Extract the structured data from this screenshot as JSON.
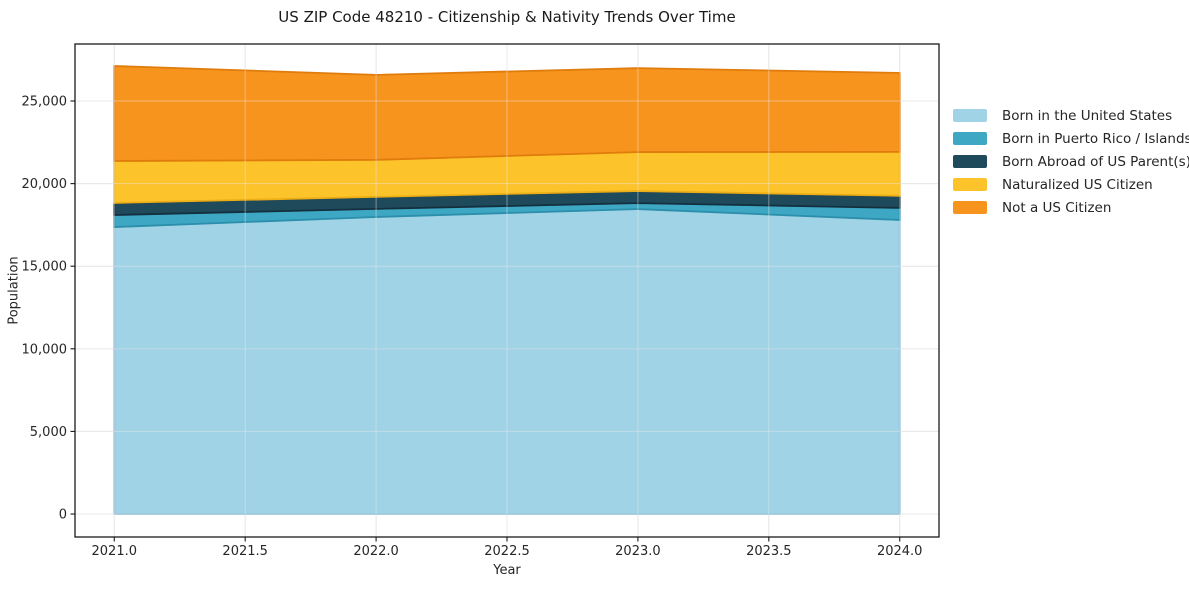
{
  "figure": {
    "title": "US ZIP Code 48210 - Citizenship & Nativity Trends Over Time",
    "xlabel": "Year",
    "ylabel": "Population"
  },
  "colors": {
    "background": "#ffffff",
    "spine": "#1a1a1a",
    "grid": "#e8e8e8",
    "tick_text": "#262626",
    "series": [
      "#a1d3e6",
      "#3ea8c4",
      "#1f4a5c",
      "#fcc32b",
      "#f7941e"
    ],
    "series_edges": [
      "#85bdd7",
      "#2b8fab",
      "#14303e",
      "#edae15",
      "#e07c0c"
    ]
  },
  "legend": {
    "position": "right",
    "items": [
      {
        "label": "Born in the United States",
        "color": "#a1d3e6"
      },
      {
        "label": "Born in Puerto Rico / Islands",
        "color": "#3ea8c4"
      },
      {
        "label": "Born Abroad of US Parent(s)",
        "color": "#1f4a5c"
      },
      {
        "label": "Naturalized US Citizen",
        "color": "#fcc32b"
      },
      {
        "label": "Not a US Citizen",
        "color": "#f7941e"
      }
    ]
  },
  "chart_data": {
    "type": "area",
    "stacked": true,
    "title": "US ZIP Code 48210 - Citizenship & Nativity Trends Over Time",
    "xlabel": "Year",
    "ylabel": "Population",
    "x": [
      2021,
      2022,
      2023,
      2024
    ],
    "series": [
      {
        "name": "Born in the United States",
        "values": [
          17370,
          17980,
          18460,
          17800
        ]
      },
      {
        "name": "Born in Puerto Rico / Islands",
        "values": [
          730,
          490,
          360,
          730
        ]
      },
      {
        "name": "Born Abroad of US Parent(s)",
        "values": [
          730,
          730,
          730,
          730
        ]
      },
      {
        "name": "Naturalized US Citizen",
        "values": [
          2540,
          2240,
          2360,
          2660
        ]
      },
      {
        "name": "Not a US Citizen",
        "values": [
          5750,
          5140,
          5080,
          4780
        ]
      }
    ],
    "stack_totals": [
      27120,
      26580,
      26990,
      26700
    ],
    "xlim": [
      2020.85,
      2024.15
    ],
    "ylim": [
      -1390,
      28450
    ],
    "x_ticks": [
      2021.0,
      2021.5,
      2022.0,
      2022.5,
      2023.0,
      2023.5,
      2024.0
    ],
    "x_tick_labels": [
      "2021.0",
      "2021.5",
      "2022.0",
      "2022.5",
      "2023.0",
      "2023.5",
      "2024.0"
    ],
    "y_ticks": [
      0,
      5000,
      10000,
      15000,
      20000,
      25000
    ],
    "y_tick_labels": [
      "0",
      "5,000",
      "10,000",
      "15,000",
      "20,000",
      "25,000"
    ],
    "grid": true,
    "legend_position": "center right outside"
  }
}
